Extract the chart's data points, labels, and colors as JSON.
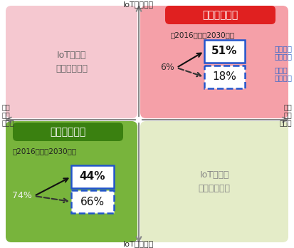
{
  "bg_color": "#ffffff",
  "axis_label_top": "IoT化（高）",
  "axis_label_bottom": "IoT化（低）",
  "axis_label_left": [
    "企業",
    "改革",
    "（低）"
  ],
  "axis_label_right": [
    "企業",
    "改革",
    "（高）"
  ],
  "quad_top_left_color": "#f5c8d0",
  "quad_top_left_text": "IoT化が高\n企業改革が低",
  "quad_top_right_color": "#f5a0a8",
  "quad_top_right_label": "先進グループ",
  "quad_top_right_label_bg": "#e02020",
  "quad_bottom_left_color": "#78b43c",
  "quad_bottom_left_label": "後進グループ",
  "quad_bottom_left_label_bg": "#3a8010",
  "quad_bottom_right_color": "#e4ecc8",
  "quad_bottom_right_text": "IoT化が低\n企業改革が高",
  "sensin_year_label": "【2016年】【2030年】",
  "sensin_start_pct": "6%",
  "sensin_solid_pct": "51%",
  "sensin_dashed_pct": "18%",
  "sensin_solid_box_color": "#2255cc",
  "sensin_dashed_box_color": "#2255cc",
  "kosin_year_label": "【2016年】【2030年】",
  "kosin_start_pct": "74%",
  "kosin_solid_pct": "44%",
  "kosin_dashed_pct": "66%",
  "kosin_solid_box_color": "#2255cc",
  "kosin_dashed_box_color": "#2255cc",
  "scenario_solid_label": [
    "経済成長",
    "シナリオ"
  ],
  "scenario_dashed_label": [
    "ベース",
    "シナリオ"
  ],
  "scenario_label_color": "#3366cc"
}
